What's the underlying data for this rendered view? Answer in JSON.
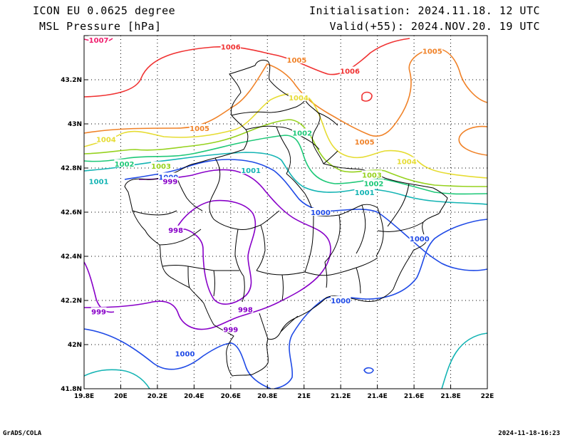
{
  "header": {
    "model": "ICON EU 0.0625 degree",
    "field": "MSL Pressure [hPa]",
    "init": "Initialisation: 2024.11.18. 12 UTC",
    "valid": "Valid(+55): 2024.NOV.20. 19 UTC"
  },
  "footer": {
    "left": "GrADS/COLA",
    "right": "2024-11-18-16:23"
  },
  "map": {
    "lon_range": [
      19.8,
      22.0
    ],
    "lat_range": [
      41.8,
      43.4
    ],
    "x_ticks": [
      "19.8E",
      "20E",
      "20.2E",
      "20.4E",
      "20.6E",
      "20.8E",
      "21E",
      "21.2E",
      "21.4E",
      "21.6E",
      "21.8E",
      "22E"
    ],
    "y_ticks": [
      "41.8N",
      "42N",
      "42.2N",
      "42.4N",
      "42.6N",
      "42.8N",
      "43N",
      "43.2N"
    ],
    "grid": "dotted",
    "colors": {
      "999": "#8800c8",
      "1000": "#1f4ae6",
      "1001": "#14b4b4",
      "1002": "#1ec878",
      "1003": "#96d21e",
      "1004": "#e6dc32",
      "1005": "#f08228",
      "1006": "#f03232",
      "1007": "#f01e6e",
      "998": "#8800c8",
      "border": "#000000"
    },
    "contour_labels": [
      {
        "text": "1007",
        "lon": 19.88,
        "lat": 43.38,
        "level": "1007"
      },
      {
        "text": "1006",
        "lon": 20.6,
        "lat": 43.35,
        "level": "1006"
      },
      {
        "text": "1005",
        "lon": 20.96,
        "lat": 43.29,
        "level": "1005"
      },
      {
        "text": "1006",
        "lon": 21.25,
        "lat": 43.24,
        "level": "1006"
      },
      {
        "text": "1005",
        "lon": 21.7,
        "lat": 43.33,
        "level": "1005"
      },
      {
        "text": "1004",
        "lon": 20.97,
        "lat": 43.12,
        "level": "1004"
      },
      {
        "text": "1005",
        "lon": 20.43,
        "lat": 42.98,
        "level": "1005"
      },
      {
        "text": "1004",
        "lon": 19.92,
        "lat": 42.93,
        "level": "1004"
      },
      {
        "text": "1002",
        "lon": 20.99,
        "lat": 42.96,
        "level": "1002"
      },
      {
        "text": "1005",
        "lon": 21.33,
        "lat": 42.92,
        "level": "1005"
      },
      {
        "text": "1004",
        "lon": 21.56,
        "lat": 42.83,
        "level": "1004"
      },
      {
        "text": "1002",
        "lon": 20.02,
        "lat": 42.82,
        "level": "1002"
      },
      {
        "text": "1003",
        "lon": 20.22,
        "lat": 42.81,
        "level": "1003"
      },
      {
        "text": "1001",
        "lon": 20.71,
        "lat": 42.79,
        "level": "1001"
      },
      {
        "text": "1000",
        "lon": 20.26,
        "lat": 42.76,
        "level": "1000"
      },
      {
        "text": "1001",
        "lon": 19.88,
        "lat": 42.74,
        "level": "1001"
      },
      {
        "text": "999",
        "lon": 20.27,
        "lat": 42.74,
        "level": "999"
      },
      {
        "text": "1003",
        "lon": 21.37,
        "lat": 42.77,
        "level": "1003"
      },
      {
        "text": "1002",
        "lon": 21.38,
        "lat": 42.73,
        "level": "1002"
      },
      {
        "text": "1001",
        "lon": 21.33,
        "lat": 42.69,
        "level": "1001"
      },
      {
        "text": "1000",
        "lon": 21.09,
        "lat": 42.6,
        "level": "1000"
      },
      {
        "text": "998",
        "lon": 20.3,
        "lat": 42.52,
        "level": "998"
      },
      {
        "text": "1000",
        "lon": 21.63,
        "lat": 42.48,
        "level": "1000"
      },
      {
        "text": "1000",
        "lon": 21.2,
        "lat": 42.2,
        "level": "1000"
      },
      {
        "text": "999",
        "lon": 19.88,
        "lat": 42.15,
        "level": "999"
      },
      {
        "text": "998",
        "lon": 20.68,
        "lat": 42.16,
        "level": "998"
      },
      {
        "text": "999",
        "lon": 20.6,
        "lat": 42.07,
        "level": "999"
      },
      {
        "text": "1000",
        "lon": 20.35,
        "lat": 41.96,
        "level": "1000"
      }
    ]
  }
}
